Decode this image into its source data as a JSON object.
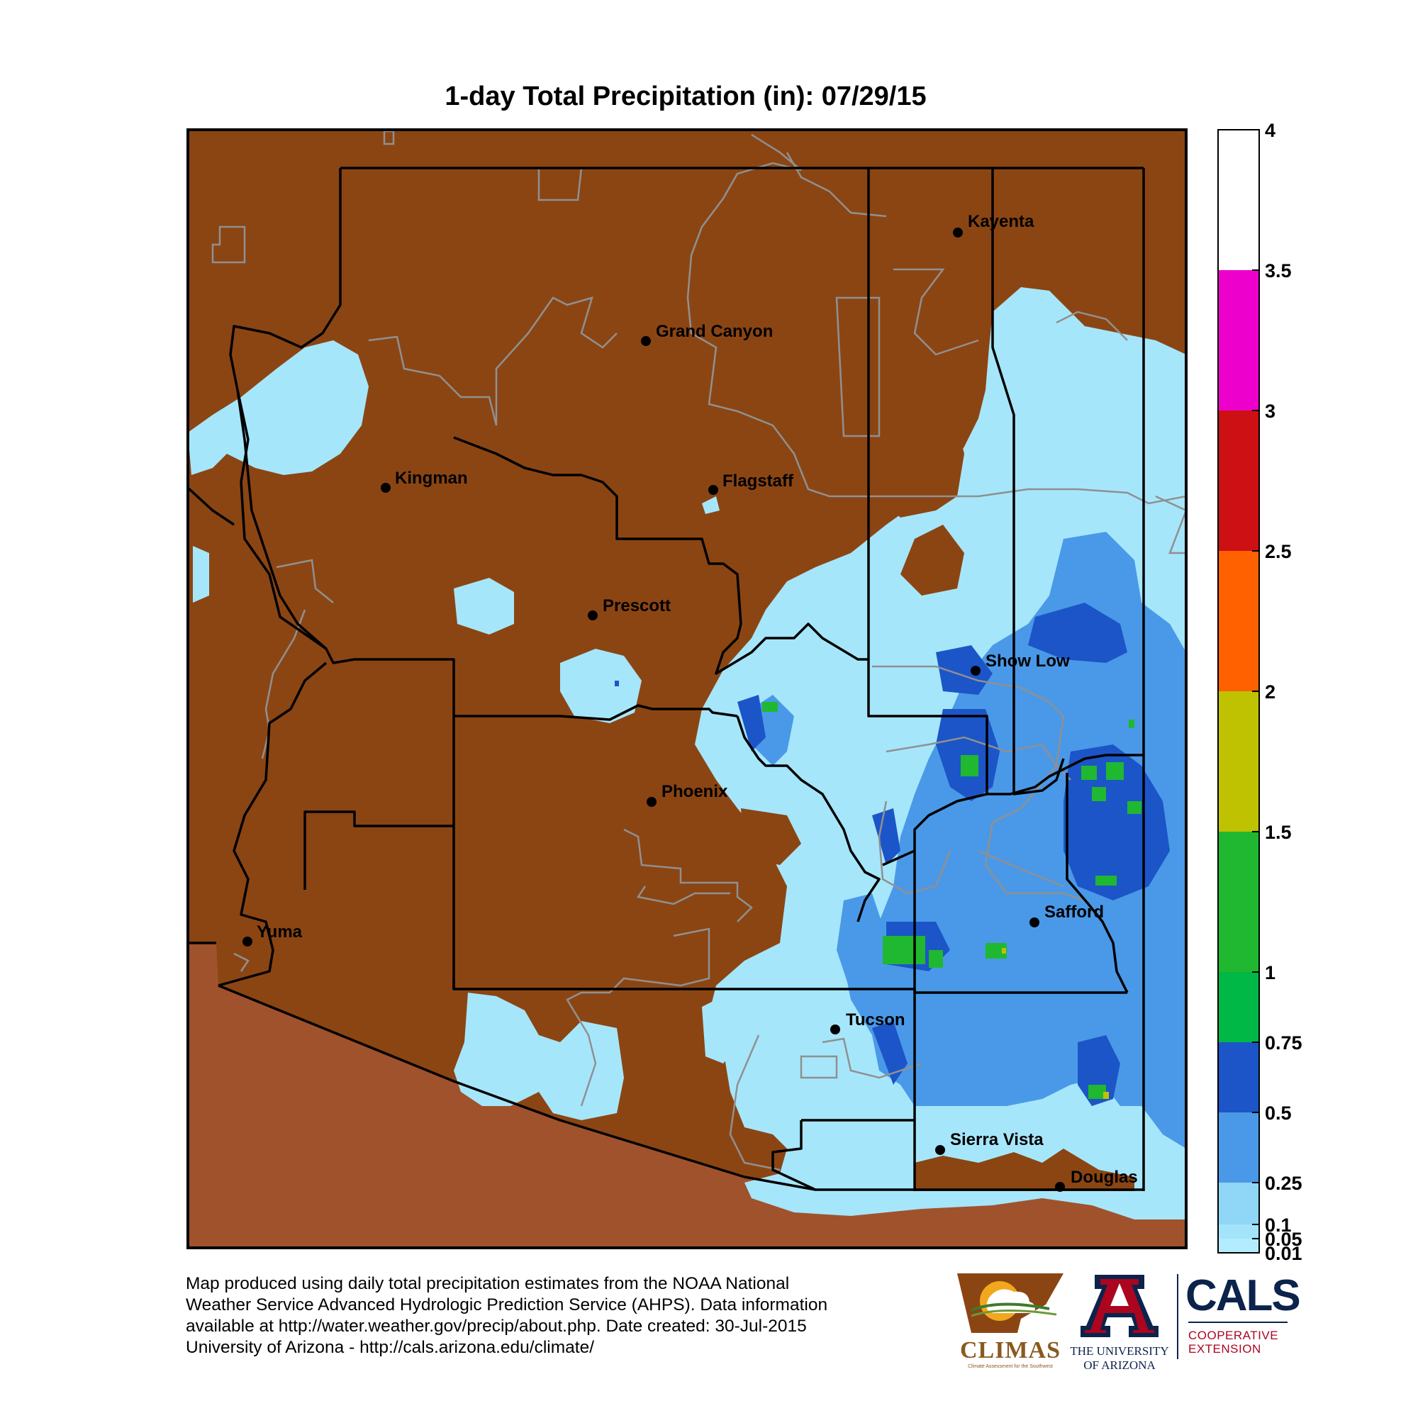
{
  "title": "1-day Total Precipitation (in): 07/29/15",
  "chart_data": {
    "type": "heatmap",
    "title": "1-day Total Precipitation (in): 07/29/15",
    "units": "in",
    "colorbar": {
      "ticks": [
        "4",
        "3.5",
        "3",
        "2.5",
        "2",
        "1.5",
        "1",
        "0.75",
        "0.5",
        "0.25",
        "0.1",
        "0.05",
        "0.01"
      ],
      "bins": [
        {
          "from": 0.01,
          "to": 0.05,
          "color": "#b3ecff"
        },
        {
          "from": 0.05,
          "to": 0.1,
          "color": "#a3e4fb"
        },
        {
          "from": 0.1,
          "to": 0.25,
          "color": "#8fd6f7"
        },
        {
          "from": 0.25,
          "to": 0.5,
          "color": "#4a99e8"
        },
        {
          "from": 0.5,
          "to": 0.75,
          "color": "#1c55c8"
        },
        {
          "from": 0.75,
          "to": 1,
          "color": "#00b845"
        },
        {
          "from": 1,
          "to": 1.5,
          "color": "#20b830"
        },
        {
          "from": 1.5,
          "to": 2,
          "color": "#bfc200"
        },
        {
          "from": 2,
          "to": 2.5,
          "color": "#ff6000"
        },
        {
          "from": 2.5,
          "to": 3,
          "color": "#cc1014"
        },
        {
          "from": 3,
          "to": 3.5,
          "color": "#ee00cc"
        },
        {
          "from": 3.5,
          "to": 4,
          "color": "#ffffff"
        }
      ]
    },
    "cities": [
      "Kayenta",
      "Grand Canyon",
      "Kingman",
      "Flagstaff",
      "Prescott",
      "Show Low",
      "Phoenix",
      "Safford",
      "Yuma",
      "Tucson",
      "Sierra Vista",
      "Douglas"
    ]
  },
  "colors": {
    "no_precip": "#8b4513",
    "outside_state": "#a0522d",
    "county_lines": "#000000",
    "reservation_lines": "#909090"
  },
  "footer": {
    "line1": "Map produced using daily total precipitation estimates from the NOAA National",
    "line2": "Weather Service Advanced Hydrologic Prediction Service (AHPS). Data information",
    "line3": "available at http://water.weather.gov/precip/about.php. Date created: 30-Jul-2015",
    "line4": "University of Arizona - http://cals.arizona.edu/climate/"
  },
  "logos": {
    "climas": "CLIMAS",
    "climas_sub": "Climate Assessment for the Southwest",
    "ua_line1": "THE UNIVERSITY",
    "ua_line2": "OF ARIZONA",
    "cals": "CALS",
    "cals_sub1": "COOPERATIVE",
    "cals_sub2": "EXTENSION"
  }
}
